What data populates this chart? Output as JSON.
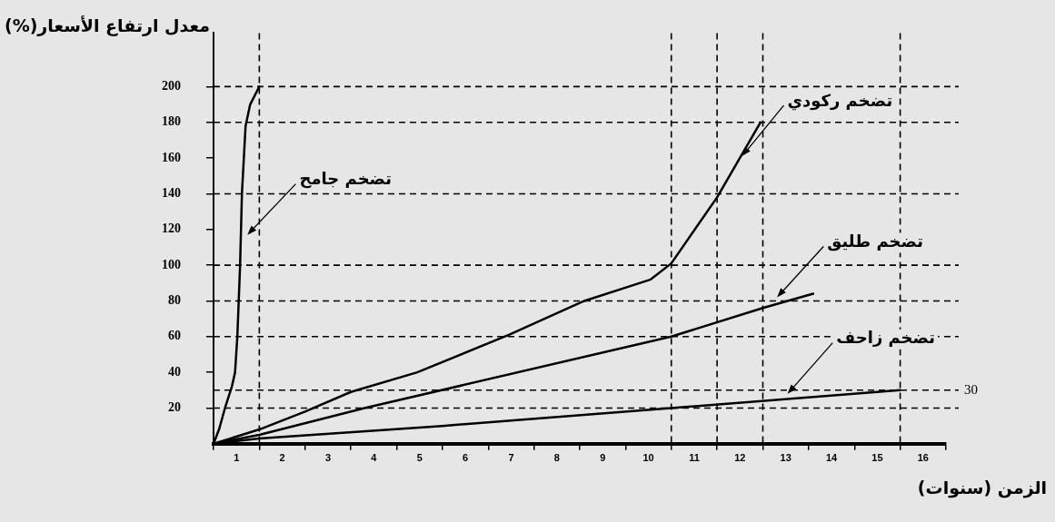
{
  "chart_data": {
    "type": "line",
    "xlabel": "الزمن (سنوات)",
    "ylabel": "معدل ارتفاع الأسعار(%)",
    "xlim": [
      0,
      16
    ],
    "xticks": [
      {
        "value": 0,
        "label": null
      },
      {
        "value": 0.5,
        "label": "1"
      },
      {
        "value": 1,
        "label": null
      },
      {
        "value": 1.5,
        "label": "2"
      },
      {
        "value": 2,
        "label": null
      },
      {
        "value": 2.5,
        "label": "3"
      },
      {
        "value": 3,
        "label": null
      },
      {
        "value": 3.5,
        "label": "4"
      },
      {
        "value": 4,
        "label": null
      },
      {
        "value": 4.5,
        "label": "5"
      },
      {
        "value": 5,
        "label": null
      },
      {
        "value": 5.5,
        "label": "6"
      },
      {
        "value": 6,
        "label": null
      },
      {
        "value": 6.5,
        "label": "7"
      },
      {
        "value": 7,
        "label": null
      },
      {
        "value": 7.5,
        "label": "8"
      },
      {
        "value": 8,
        "label": null
      },
      {
        "value": 8.5,
        "label": "9"
      },
      {
        "value": 9,
        "label": null
      },
      {
        "value": 9.5,
        "label": "10"
      },
      {
        "value": 10,
        "label": null
      },
      {
        "value": 10.5,
        "label": "11"
      },
      {
        "value": 11,
        "label": null
      },
      {
        "value": 11.5,
        "label": "12"
      },
      {
        "value": 12,
        "label": null
      },
      {
        "value": 12.5,
        "label": "13"
      },
      {
        "value": 13,
        "label": null
      },
      {
        "value": 13.5,
        "label": "14"
      },
      {
        "value": 14,
        "label": null
      },
      {
        "value": 14.5,
        "label": "15"
      },
      {
        "value": 15,
        "label": null
      },
      {
        "value": 15.5,
        "label": "16"
      },
      {
        "value": 16,
        "label": null
      }
    ],
    "ylim": [
      0,
      230
    ],
    "yticks": [
      20,
      40,
      60,
      80,
      100,
      120,
      140,
      160,
      180,
      200
    ],
    "grid": false,
    "legend": false,
    "marker": "none",
    "line_style": "solid",
    "series": [
      {
        "color": "#000000",
        "x": [
          0,
          0.12,
          0.25,
          0.4,
          0.47,
          0.52,
          0.58,
          0.62,
          0.7,
          0.8,
          1
        ],
        "values": [
          0,
          8,
          20,
          32,
          40,
          60,
          100,
          140,
          178,
          190,
          200
        ]
      },
      {
        "color": "#000000",
        "x": [
          0,
          1,
          2,
          3,
          4.45,
          6.45,
          8.1,
          9.55,
          10,
          11,
          11.95
        ],
        "values": [
          0,
          8,
          18,
          29,
          40,
          61,
          80,
          92,
          101,
          138,
          180
        ]
      },
      {
        "color": "#000000",
        "x": [
          0,
          1,
          3.3,
          10,
          12,
          13.1
        ],
        "values": [
          0,
          5,
          20,
          60,
          76,
          84
        ]
      },
      {
        "color": "#000000",
        "x": [
          0,
          1,
          5,
          10,
          15
        ],
        "values": [
          0,
          3,
          10,
          20,
          30
        ]
      }
    ],
    "annotations": [
      {
        "text": "تضخم جامح",
        "x": 0.7,
        "y": 116
      },
      {
        "text": "تضخم ركودي",
        "x": 11.5,
        "y": 160
      },
      {
        "text": "تضخم طليق",
        "x": 12.27,
        "y": 81
      },
      {
        "text": "تضخم زاحف",
        "x": 12.5,
        "y": 27
      }
    ],
    "ref_lines": [
      {
        "axis": "y",
        "value": 200,
        "line_style": "dashed",
        "color": "#000000"
      },
      {
        "axis": "y",
        "value": 180,
        "line_style": "dashed",
        "color": "#000000"
      },
      {
        "axis": "y",
        "value": 140,
        "line_style": "dashed",
        "color": "#000000"
      },
      {
        "axis": "y",
        "value": 100,
        "line_style": "dashed",
        "color": "#000000"
      },
      {
        "axis": "y",
        "value": 80,
        "line_style": "dashed",
        "color": "#000000"
      },
      {
        "axis": "y",
        "value": 60,
        "line_style": "dashed",
        "color": "#000000"
      },
      {
        "axis": "y",
        "value": 30,
        "label": "30",
        "line_style": "dashed",
        "color": "#000000"
      },
      {
        "axis": "y",
        "value": 20,
        "line_style": "dashed",
        "color": "#000000"
      },
      {
        "axis": "x",
        "value": 1,
        "line_style": "dashed",
        "color": "#000000"
      },
      {
        "axis": "x",
        "value": 10,
        "line_style": "dashed",
        "color": "#000000"
      },
      {
        "axis": "x",
        "value": 11,
        "line_style": "dashed",
        "color": "#000000"
      },
      {
        "axis": "x",
        "value": 12,
        "line_style": "dashed",
        "color": "#000000"
      },
      {
        "axis": "x",
        "value": 15,
        "line_style": "dashed",
        "color": "#000000"
      }
    ]
  }
}
